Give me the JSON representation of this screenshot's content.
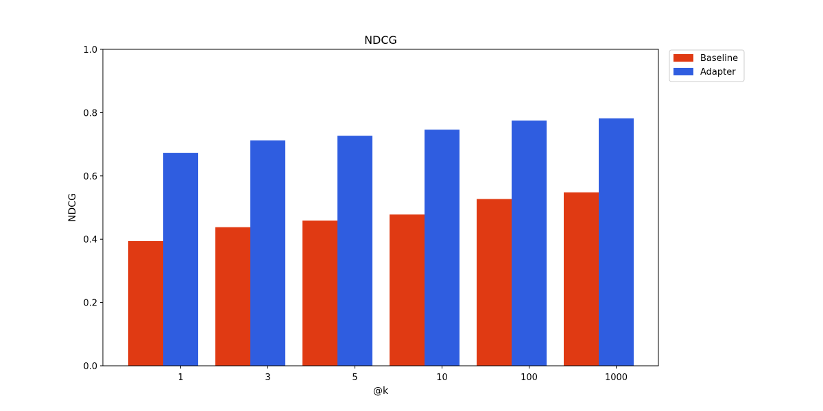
{
  "chart_data": {
    "type": "bar",
    "title": "NDCG",
    "xlabel": "@k",
    "ylabel": "NDCG",
    "categories": [
      "1",
      "3",
      "5",
      "10",
      "100",
      "1000"
    ],
    "series": [
      {
        "name": "Baseline",
        "color": "#e03a13",
        "values": [
          0.394,
          0.438,
          0.459,
          0.478,
          0.527,
          0.548
        ]
      },
      {
        "name": "Adapter",
        "color": "#2f5de0",
        "values": [
          0.673,
          0.712,
          0.727,
          0.746,
          0.775,
          0.782
        ]
      }
    ],
    "ylim": [
      0,
      1.0
    ],
    "yticks": [
      "0.0",
      "0.2",
      "0.4",
      "0.6",
      "0.8",
      "1.0"
    ],
    "grid": false,
    "legend_position": "outside-top-right"
  }
}
